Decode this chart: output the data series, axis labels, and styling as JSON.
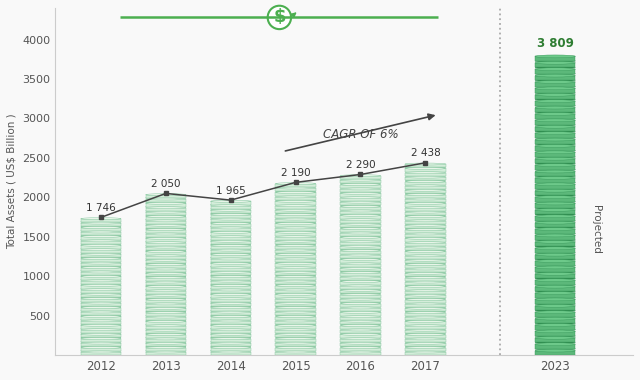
{
  "years": [
    "2012",
    "2013",
    "2014",
    "2015",
    "2016",
    "2017",
    "2023"
  ],
  "values": [
    1746,
    2050,
    1965,
    2190,
    2290,
    2438,
    3809
  ],
  "bar_face_light": "#d4edda",
  "bar_face_mid": "#a8d5b5",
  "bar_edge": "#7fc49a",
  "proj_face": "#5cb87a",
  "proj_face_top": "#6dc98a",
  "proj_edge": "#3a9a5c",
  "line_color": "#444444",
  "ylabel": "Total Assets ( US$ Billion )",
  "ylim": [
    0,
    4400
  ],
  "yticks": [
    500,
    1000,
    1500,
    2000,
    2500,
    3000,
    3500,
    4000
  ],
  "cagr_text": "CAGR OF 6%",
  "projected_label": "Projected",
  "background_color": "#f9f9f9",
  "value_labels": [
    "1 746",
    "2 050",
    "1 965",
    "2 190",
    "2 290",
    "2 438"
  ],
  "proj_value_label": "3 809",
  "top_line_color": "#4caf50",
  "dashed_line_color": "#aaaaaa"
}
